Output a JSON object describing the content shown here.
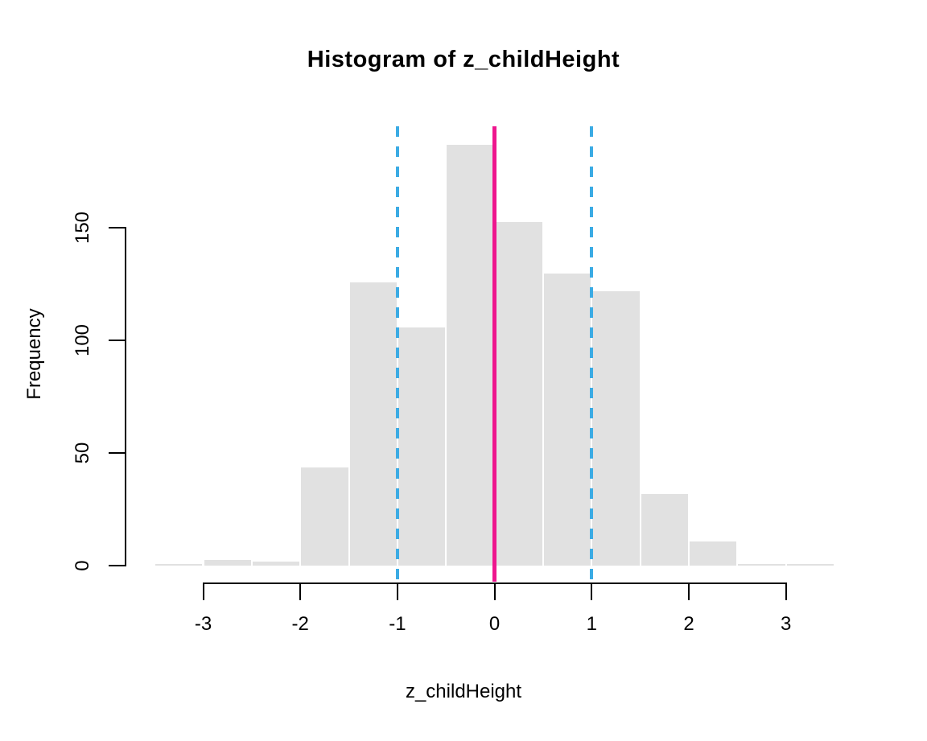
{
  "chart_data": {
    "type": "bar",
    "variant": "histogram",
    "title": "Histogram of z_childHeight",
    "xlabel": "z_childHeight",
    "ylabel": "Frequency",
    "bin_edges": [
      -3.5,
      -3.0,
      -2.5,
      -2.0,
      -1.5,
      -1.0,
      -0.5,
      0.0,
      0.5,
      1.0,
      1.5,
      2.0,
      2.5,
      3.0,
      3.5
    ],
    "counts": [
      1,
      3,
      2,
      44,
      126,
      106,
      187,
      153,
      130,
      122,
      32,
      11,
      1,
      1
    ],
    "x_ticks": [
      -3,
      -2,
      -1,
      0,
      1,
      2,
      3
    ],
    "y_ticks": [
      0,
      50,
      100,
      150
    ],
    "xlim": [
      -3.78,
      3.78
    ],
    "ylim": [
      -7.5,
      195.5
    ],
    "grid": "off",
    "legend": "none",
    "colors": {
      "bar_fill": "#e1e1e1",
      "bar_border": "#ffffff",
      "axis": "#000000",
      "mean_line": "#ee168e",
      "sd_line": "#3babe4"
    },
    "vlines": [
      {
        "x": -1,
        "style": "dashed",
        "color": "#3babe4",
        "name": "vline-minus-1sd"
      },
      {
        "x": 1,
        "style": "dashed",
        "color": "#3babe4",
        "name": "vline-plus-1sd"
      },
      {
        "x": 0,
        "style": "solid",
        "color": "#ee168e",
        "name": "vline-mean"
      }
    ]
  }
}
